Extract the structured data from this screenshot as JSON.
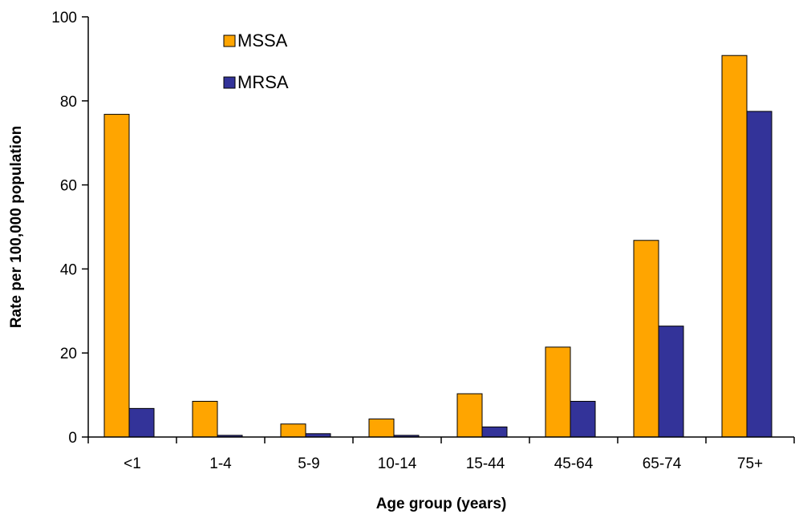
{
  "chart_data": {
    "type": "bar",
    "title": "",
    "xlabel": "Age group (years)",
    "ylabel": "Rate per 100,000 population",
    "categories": [
      "<1",
      "1-4",
      "5-9",
      "10-14",
      "15-44",
      "45-64",
      "65-74",
      "75+"
    ],
    "series": [
      {
        "name": "MSSA",
        "color": "#FFA500",
        "values": [
          76.8,
          8.5,
          3.1,
          4.3,
          10.3,
          21.4,
          46.8,
          90.8
        ]
      },
      {
        "name": "MRSA",
        "color": "#333399",
        "values": [
          6.8,
          0.4,
          0.8,
          0.4,
          2.4,
          8.5,
          26.4,
          77.5
        ]
      }
    ],
    "ylim": [
      0,
      100
    ],
    "yticks": [
      0,
      20,
      40,
      60,
      80,
      100
    ],
    "legend_position": "top-left",
    "grid": false
  }
}
